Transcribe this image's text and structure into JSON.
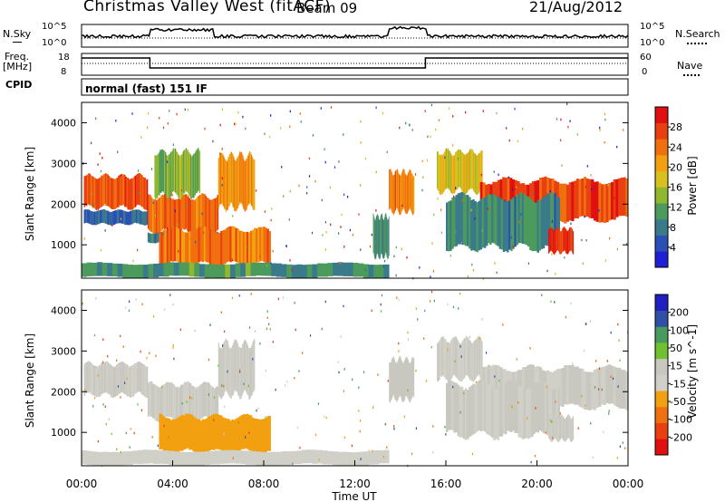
{
  "header": {
    "site_title": "Christmas Valley West (fitACF)",
    "beam": "Beam 09",
    "date": "21/Aug/2012"
  },
  "top_panels": {
    "nsky_label": "N.Sky",
    "nsearch_label": "N.Search",
    "noise_ticks": [
      "10^5",
      "10^0"
    ],
    "freq_label": "Freq.",
    "freq_unit": "[MHz]",
    "freq_ticks": [
      "18",
      "8"
    ],
    "nave_ticks": [
      "60",
      "0"
    ],
    "nave_label": "Nave",
    "cpid_label": "CPID",
    "cpid_value": "normal (fast) 151 IF"
  },
  "chart_data": [
    {
      "type": "heatmap",
      "panel": "power",
      "ylabel": "Slant Range [km]",
      "ylim": [
        180,
        4500
      ],
      "yticks": [
        1000,
        2000,
        3000,
        4000
      ],
      "xlim": [
        0,
        24
      ],
      "colorbar": {
        "label": "Power [dB]",
        "ticks": [
          "28",
          "24",
          "20",
          "16",
          "12",
          "8",
          "4"
        ],
        "range": [
          0,
          32
        ],
        "colors": [
          "#1f1fd6",
          "#2a50b8",
          "#3a7a8a",
          "#4c9a5c",
          "#8fb830",
          "#d8c020",
          "#f2a010",
          "#f07010",
          "#e84010",
          "#e01010"
        ]
      },
      "bands": [
        {
          "t": [
            0.1,
            2.9
          ],
          "r": [
            1900,
            2700
          ],
          "power": 26
        },
        {
          "t": [
            0.1,
            2.9
          ],
          "r": [
            1500,
            1850
          ],
          "power": 6
        },
        {
          "t": [
            2.9,
            6.0
          ],
          "r": [
            1300,
            2200
          ],
          "power": 25
        },
        {
          "t": [
            2.9,
            6.0
          ],
          "r": [
            1050,
            1300
          ],
          "power": 8
        },
        {
          "t": [
            3.2,
            5.2
          ],
          "r": [
            2200,
            3300
          ],
          "power": 14
        },
        {
          "t": [
            3.4,
            8.3
          ],
          "r": [
            500,
            1400
          ],
          "power": 24
        },
        {
          "t": [
            6.0,
            7.6
          ],
          "r": [
            1900,
            3200
          ],
          "power": 22
        },
        {
          "t": [
            13.5,
            14.6
          ],
          "r": [
            1800,
            2800
          ],
          "power": 23
        },
        {
          "t": [
            12.8,
            13.5
          ],
          "r": [
            700,
            1700
          ],
          "power": 10
        },
        {
          "t": [
            15.6,
            17.6
          ],
          "r": [
            2300,
            3300
          ],
          "power": 18
        },
        {
          "t": [
            17.5,
            24.0
          ],
          "r": [
            1600,
            2600
          ],
          "power": 27
        },
        {
          "t": [
            16.0,
            21.0
          ],
          "r": [
            900,
            2200
          ],
          "power": 9
        },
        {
          "t": [
            20.5,
            21.6
          ],
          "r": [
            800,
            1400
          ],
          "power": 28
        },
        {
          "t": [
            0.0,
            13.5
          ],
          "r": [
            200,
            550
          ],
          "power": 10
        }
      ]
    },
    {
      "type": "heatmap",
      "panel": "velocity",
      "ylabel": "Slant Range [km]",
      "xlabel": "Time UT",
      "ylim": [
        180,
        4500
      ],
      "yticks": [
        1000,
        2000,
        3000,
        4000
      ],
      "xlim": [
        0,
        24
      ],
      "xticks": [
        "00:00",
        "04:00",
        "08:00",
        "12:00",
        "16:00",
        "20:00",
        "00:00"
      ],
      "colorbar": {
        "label": "Velocity [m s^-1]",
        "ticks": [
          "200",
          "100",
          "50",
          "15",
          "-15",
          "-50",
          "-100",
          "-200"
        ],
        "range": [
          -250,
          250
        ],
        "colors": [
          "#e01010",
          "#e84010",
          "#f07010",
          "#f2a010",
          "#d0d0c8",
          "#c8c8c0",
          "#70c030",
          "#4a9a60",
          "#3050a8",
          "#2020c0"
        ]
      },
      "bands": [
        {
          "t": [
            0.1,
            2.9
          ],
          "r": [
            1900,
            2700
          ],
          "velocity": 0
        },
        {
          "t": [
            2.9,
            6.0
          ],
          "r": [
            1300,
            2200
          ],
          "velocity": 0
        },
        {
          "t": [
            3.4,
            8.3
          ],
          "r": [
            500,
            1400
          ],
          "velocity": -60
        },
        {
          "t": [
            6.0,
            7.6
          ],
          "r": [
            1900,
            3200
          ],
          "velocity": 0
        },
        {
          "t": [
            13.5,
            14.6
          ],
          "r": [
            1800,
            2800
          ],
          "velocity": 30
        },
        {
          "t": [
            15.6,
            17.6
          ],
          "r": [
            2300,
            3300
          ],
          "velocity": 0
        },
        {
          "t": [
            17.5,
            24.0
          ],
          "r": [
            1600,
            2600
          ],
          "velocity": 0
        },
        {
          "t": [
            16.0,
            21.0
          ],
          "r": [
            900,
            2200
          ],
          "velocity": 0
        },
        {
          "t": [
            20.5,
            21.6
          ],
          "r": [
            800,
            1400
          ],
          "velocity": 0
        },
        {
          "t": [
            0.0,
            13.5
          ],
          "r": [
            200,
            550
          ],
          "velocity": -30
        }
      ]
    }
  ]
}
